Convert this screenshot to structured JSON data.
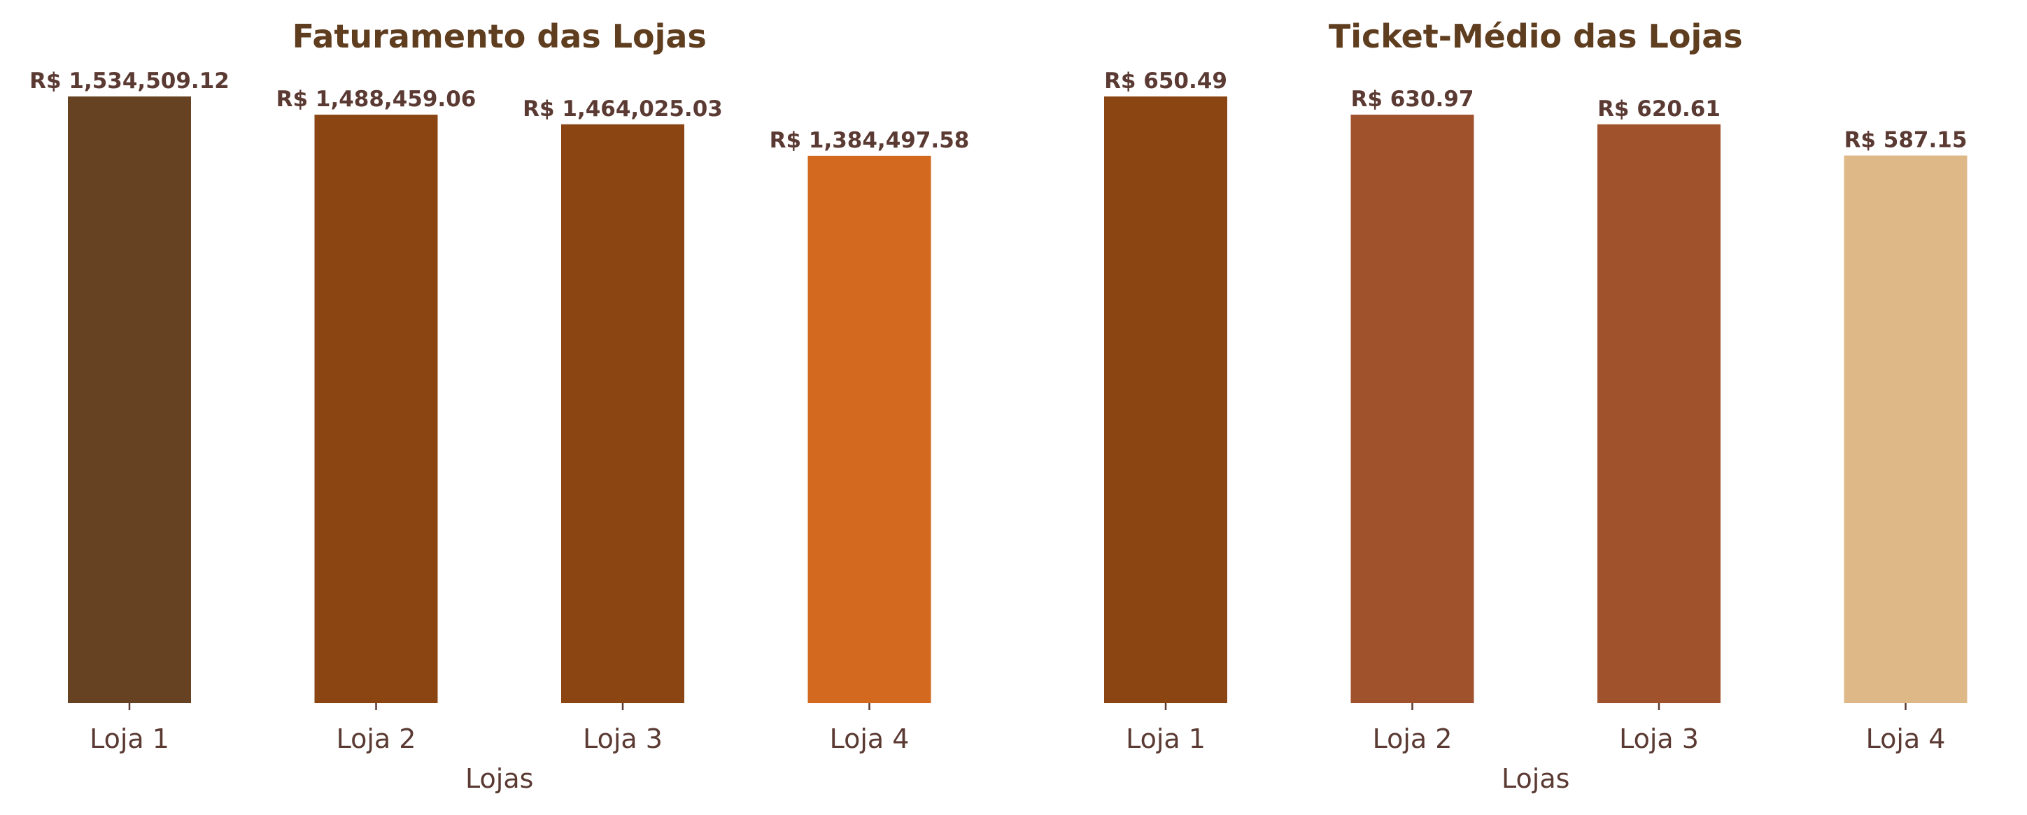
{
  "colors": {
    "title": "#5f3d1f",
    "text": "#5a3a32",
    "axis": "#5a3a32"
  },
  "chart_data": [
    {
      "type": "bar",
      "title": "Faturamento das Lojas",
      "xlabel": "Lojas",
      "ylabel": "",
      "categories": [
        "Loja 1",
        "Loja 2",
        "Loja 3",
        "Loja 4"
      ],
      "values": [
        1534509.12,
        1488459.06,
        1464025.03,
        1384497.58
      ],
      "value_labels": [
        "R$ 1,534,509.12",
        "R$ 1,488,459.06",
        "R$ 1,464,025.03",
        "R$ 1,384,497.58"
      ],
      "colors": [
        "#664222",
        "#8b4513",
        "#8b4513",
        "#d2691e"
      ],
      "ylim": [
        0,
        1534509.12
      ],
      "grid": false,
      "legend": "none"
    },
    {
      "type": "bar",
      "title": "Ticket-Médio das Lojas",
      "xlabel": "Lojas",
      "ylabel": "",
      "categories": [
        "Loja 1",
        "Loja 2",
        "Loja 3",
        "Loja 4"
      ],
      "values": [
        650.49,
        630.97,
        620.61,
        587.15
      ],
      "value_labels": [
        "R$ 650.49",
        "R$ 630.97",
        "R$ 620.61",
        "R$ 587.15"
      ],
      "colors": [
        "#8b4513",
        "#a0522d",
        "#a0522d",
        "#deb887"
      ],
      "ylim": [
        0,
        650.49
      ],
      "grid": false,
      "legend": "none"
    }
  ]
}
